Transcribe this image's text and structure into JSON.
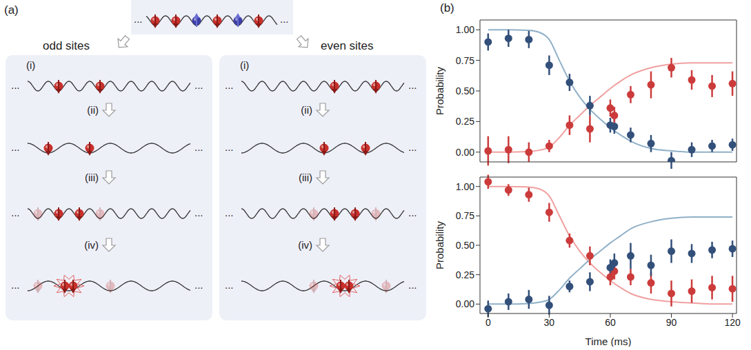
{
  "panel_labels": [
    "(a)",
    "(b)"
  ],
  "diagram": {
    "ellipsis": "...",
    "panels": [
      {
        "title": "odd sites",
        "steps": [
          "(i)",
          "(ii)",
          "(iii)",
          "(iv)"
        ]
      },
      {
        "title": "even sites",
        "steps": [
          "(i)",
          "(ii)",
          "(iii)",
          "(iv)"
        ]
      }
    ]
  },
  "chart_data": [
    {
      "type": "line",
      "ylabel": "Probability",
      "xlim": [
        -4,
        122
      ],
      "xticks": [
        0,
        30,
        60,
        90,
        120
      ],
      "ylim": [
        -0.08,
        1.08
      ],
      "yticks": [
        {
          "value": 0,
          "label": "0.00"
        },
        {
          "value": 0.25,
          "label": "0.25"
        },
        {
          "value": 0.5,
          "label": "0.50"
        },
        {
          "value": 0.75,
          "label": "0.75"
        },
        {
          "value": 1,
          "label": "1.00"
        }
      ],
      "tick_labels": "y",
      "series": [
        {
          "type": "line",
          "color": "#8fb0c8",
          "line_style": "solid",
          "x": [
            0,
            10,
            20,
            25,
            30,
            35,
            40,
            45,
            50,
            55,
            60,
            65,
            70,
            80,
            90,
            100,
            110,
            120
          ],
          "values": [
            1.0,
            1.0,
            0.995,
            0.98,
            0.92,
            0.75,
            0.58,
            0.45,
            0.35,
            0.27,
            0.2,
            0.14,
            0.09,
            0.03,
            0.01,
            0.0,
            0.0,
            0.0
          ]
        },
        {
          "type": "line",
          "color": "#f0a0a0",
          "line_style": "solid",
          "x": [
            0,
            10,
            20,
            25,
            30,
            35,
            40,
            45,
            50,
            55,
            60,
            65,
            70,
            80,
            90,
            100,
            110,
            120
          ],
          "values": [
            0.0,
            0.0,
            0.005,
            0.015,
            0.04,
            0.12,
            0.22,
            0.3,
            0.38,
            0.45,
            0.52,
            0.58,
            0.63,
            0.69,
            0.72,
            0.73,
            0.73,
            0.73
          ]
        },
        {
          "type": "scatter",
          "color": "#33507a",
          "marker": "o",
          "x": [
            0,
            10,
            20,
            30,
            40,
            50,
            60,
            62,
            70,
            80,
            90,
            100,
            110,
            120
          ],
          "values": [
            0.9,
            0.93,
            0.92,
            0.71,
            0.57,
            0.38,
            0.22,
            0.21,
            0.14,
            0.07,
            -0.07,
            0.02,
            0.05,
            0.06
          ],
          "errors": [
            0.07,
            0.07,
            0.07,
            0.08,
            0.07,
            0.08,
            0.06,
            0.06,
            0.06,
            0.07,
            0.07,
            0.06,
            0.05,
            0.05
          ]
        },
        {
          "type": "scatter",
          "color": "#cc3b3b",
          "marker": "o",
          "x": [
            0,
            10,
            20,
            30,
            40,
            50,
            60,
            62,
            70,
            80,
            90,
            100,
            110,
            120
          ],
          "values": [
            0.01,
            0.02,
            0.0,
            0.05,
            0.22,
            0.19,
            0.36,
            0.3,
            0.47,
            0.55,
            0.69,
            0.59,
            0.54,
            0.56
          ],
          "errors": [
            0.12,
            0.11,
            0.08,
            0.05,
            0.08,
            0.11,
            0.07,
            0.07,
            0.07,
            0.11,
            0.08,
            0.08,
            0.09,
            0.1
          ]
        }
      ]
    },
    {
      "type": "line",
      "ylabel": "Probability",
      "xlabel": "Time (ms)",
      "xlim": [
        -4,
        122
      ],
      "xticks": [
        0,
        30,
        60,
        90,
        120
      ],
      "ylim": [
        -0.08,
        1.08
      ],
      "yticks": [
        {
          "value": 0,
          "label": "0.00"
        },
        {
          "value": 0.25,
          "label": "0.25"
        },
        {
          "value": 0.5,
          "label": "0.50"
        },
        {
          "value": 0.75,
          "label": "0.75"
        },
        {
          "value": 1,
          "label": "1.00"
        }
      ],
      "series": [
        {
          "type": "line",
          "color": "#f0a0a0",
          "line_style": "solid",
          "x": [
            0,
            10,
            20,
            25,
            30,
            35,
            40,
            45,
            50,
            55,
            60,
            65,
            70,
            80,
            90,
            100,
            110,
            120
          ],
          "values": [
            1.0,
            1.0,
            0.995,
            0.98,
            0.92,
            0.75,
            0.58,
            0.45,
            0.35,
            0.27,
            0.2,
            0.14,
            0.09,
            0.04,
            0.02,
            0.01,
            0.0,
            0.0
          ]
        },
        {
          "type": "line",
          "color": "#8fb0c8",
          "line_style": "solid",
          "x": [
            0,
            10,
            20,
            25,
            30,
            35,
            40,
            45,
            50,
            55,
            60,
            65,
            70,
            80,
            90,
            100,
            110,
            120
          ],
          "values": [
            0.0,
            0.0,
            0.005,
            0.015,
            0.04,
            0.12,
            0.22,
            0.3,
            0.38,
            0.45,
            0.52,
            0.58,
            0.64,
            0.7,
            0.73,
            0.74,
            0.74,
            0.74
          ]
        },
        {
          "type": "scatter",
          "color": "#cc3b3b",
          "marker": "o",
          "x": [
            0,
            10,
            20,
            30,
            40,
            50,
            60,
            62,
            70,
            80,
            90,
            100,
            110,
            120
          ],
          "values": [
            1.04,
            0.97,
            0.93,
            0.78,
            0.54,
            0.41,
            0.23,
            0.28,
            0.23,
            0.18,
            0.09,
            0.11,
            0.14,
            0.13
          ],
          "errors": [
            0.06,
            0.05,
            0.06,
            0.08,
            0.06,
            0.08,
            0.07,
            0.07,
            0.07,
            0.09,
            0.11,
            0.1,
            0.1,
            0.11
          ]
        },
        {
          "type": "scatter",
          "color": "#33507a",
          "marker": "o",
          "x": [
            0,
            10,
            20,
            30,
            40,
            50,
            60,
            62,
            70,
            80,
            90,
            100,
            110,
            120
          ],
          "values": [
            -0.04,
            0.02,
            0.04,
            -0.01,
            0.15,
            0.19,
            0.31,
            0.35,
            0.41,
            0.33,
            0.45,
            0.43,
            0.46,
            0.47
          ],
          "errors": [
            0.07,
            0.07,
            0.08,
            0.08,
            0.05,
            0.08,
            0.07,
            0.08,
            0.11,
            0.09,
            0.1,
            0.08,
            0.07,
            0.07
          ]
        }
      ]
    }
  ]
}
